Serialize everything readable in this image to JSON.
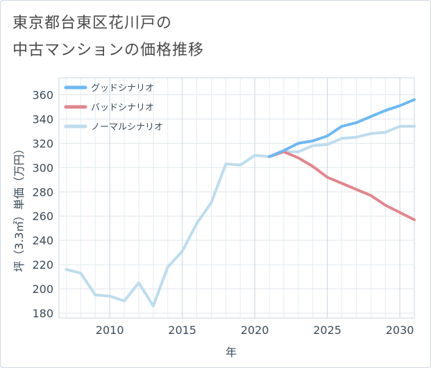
{
  "title_line1": "東京都台東区花川戸の",
  "title_line2": "中古マンションの価格推移",
  "chart_data": {
    "type": "line",
    "title": "東京都台東区花川戸の中古マンションの価格推移",
    "xlabel": "年",
    "ylabel": "坪（3.3㎡）単価（万円）",
    "xlim": [
      2006.5,
      2031
    ],
    "ylim": [
      176,
      374
    ],
    "xticks": [
      2010,
      2015,
      2020,
      2025,
      2030
    ],
    "yticks": [
      180,
      200,
      220,
      240,
      260,
      280,
      300,
      320,
      340,
      360
    ],
    "grid": true,
    "legend_position": "top-left",
    "series": [
      {
        "name": "グッドシナリオ",
        "color": "#6fb8f0",
        "points": [
          [
            2021,
            309
          ],
          [
            2022,
            314
          ],
          [
            2023,
            320
          ],
          [
            2024,
            322
          ],
          [
            2025,
            326
          ],
          [
            2026,
            334
          ],
          [
            2027,
            337
          ],
          [
            2028,
            342
          ],
          [
            2029,
            347
          ],
          [
            2030,
            351
          ],
          [
            2031,
            356
          ]
        ]
      },
      {
        "name": "バッドシナリオ",
        "color": "#e0868d",
        "points": [
          [
            2021,
            309
          ],
          [
            2022,
            313
          ],
          [
            2023,
            308
          ],
          [
            2024,
            301
          ],
          [
            2025,
            292
          ],
          [
            2026,
            287
          ],
          [
            2027,
            282
          ],
          [
            2028,
            277
          ],
          [
            2029,
            269
          ],
          [
            2030,
            263
          ],
          [
            2031,
            257
          ]
        ]
      },
      {
        "name": "ノーマルシナリオ",
        "color": "#bedcec",
        "points": [
          [
            2007,
            216
          ],
          [
            2008,
            213
          ],
          [
            2009,
            195
          ],
          [
            2010,
            194
          ],
          [
            2011,
            190
          ],
          [
            2012,
            205
          ],
          [
            2013,
            186
          ],
          [
            2014,
            218
          ],
          [
            2015,
            231
          ],
          [
            2016,
            254
          ],
          [
            2017,
            271
          ],
          [
            2018,
            303
          ],
          [
            2019,
            302
          ],
          [
            2020,
            310
          ],
          [
            2021,
            309
          ],
          [
            2022,
            313
          ],
          [
            2023,
            313
          ],
          [
            2024,
            318
          ],
          [
            2025,
            319
          ],
          [
            2026,
            324
          ],
          [
            2027,
            325
          ],
          [
            2028,
            328
          ],
          [
            2029,
            329
          ],
          [
            2030,
            334
          ],
          [
            2031,
            334
          ]
        ]
      }
    ]
  }
}
